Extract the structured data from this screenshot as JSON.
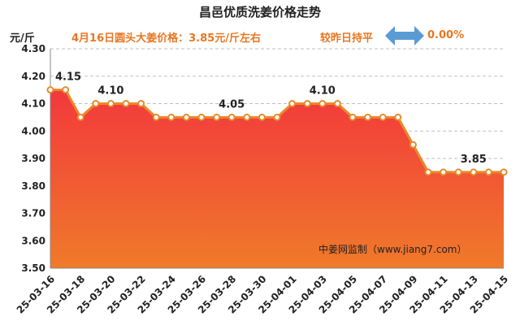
{
  "title": "昌邑优质洗姜价格走势",
  "unit_label": "元/斤",
  "info_text": "4月16日圆头大姜价格：3.85元/斤左右",
  "compare_text": "较昨日持平",
  "change_pct": "0.00%",
  "watermark": "中姜网监制（www.jiang7.com）",
  "colors": {
    "title": "#222222",
    "info": "#e87722",
    "line": "#e8892a",
    "fill_top": "#f2383c",
    "fill_bottom": "#f07a2a",
    "arrow": "#5b9bd5"
  },
  "chart_data": {
    "type": "area",
    "x": [
      "25-03-16",
      "25-03-17",
      "25-03-18",
      "25-03-19",
      "25-03-20",
      "25-03-21",
      "25-03-22",
      "25-03-23",
      "25-03-24",
      "25-03-25",
      "25-03-26",
      "25-03-27",
      "25-03-28",
      "25-03-29",
      "25-03-30",
      "25-03-31",
      "25-04-01",
      "25-04-02",
      "25-04-03",
      "25-04-04",
      "25-04-05",
      "25-04-06",
      "25-04-07",
      "25-04-08",
      "25-04-09",
      "25-04-10",
      "25-04-11",
      "25-04-12",
      "25-04-13",
      "25-04-14",
      "25-04-15"
    ],
    "values": [
      4.15,
      4.15,
      4.05,
      4.1,
      4.1,
      4.1,
      4.1,
      4.05,
      4.05,
      4.05,
      4.05,
      4.05,
      4.05,
      4.05,
      4.05,
      4.05,
      4.1,
      4.1,
      4.1,
      4.1,
      4.05,
      4.05,
      4.05,
      4.05,
      3.95,
      3.85,
      3.85,
      3.85,
      3.85,
      3.85,
      3.85
    ],
    "x_tick_labels": [
      "25-03-16",
      "25-03-18",
      "25-03-20",
      "25-03-22",
      "25-03-24",
      "25-03-26",
      "25-03-28",
      "25-03-30",
      "25-04-01",
      "25-04-03",
      "25-04-05",
      "25-04-07",
      "25-04-09",
      "25-04-11",
      "25-04-13",
      "25-04-15"
    ],
    "y_ticks": [
      "3.50",
      "3.60",
      "3.70",
      "3.80",
      "3.90",
      "4.00",
      "4.10",
      "4.20",
      "4.30"
    ],
    "ylim": [
      3.5,
      4.3
    ],
    "grid": true,
    "annotations": [
      {
        "index": 0,
        "text": "4.15"
      },
      {
        "index": 4,
        "text": "4.10"
      },
      {
        "index": 12,
        "text": "4.05"
      },
      {
        "index": 18,
        "text": "4.10"
      },
      {
        "index": 28,
        "text": "3.85"
      }
    ]
  }
}
